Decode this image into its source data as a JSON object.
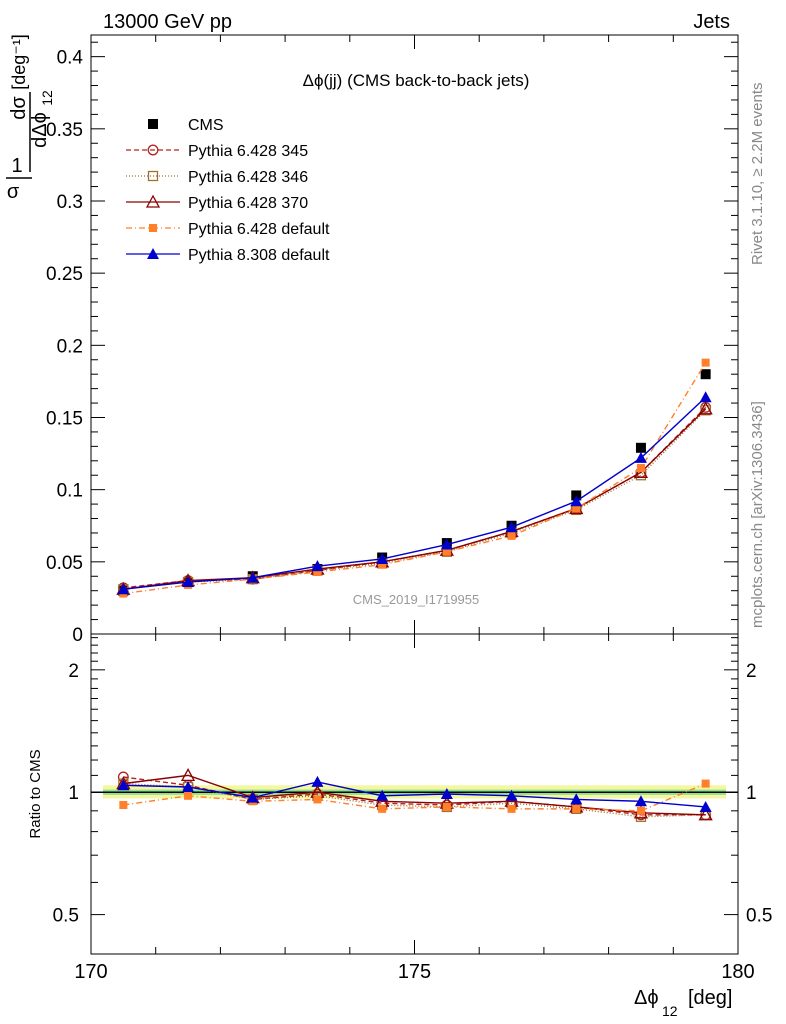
{
  "header": {
    "left": "13000 GeV pp",
    "right": "Jets"
  },
  "side_text": {
    "rivet": "Rivet 3.1.10, ≥ 2.2M events",
    "mcplots": "mcplots.cern.ch [arXiv:1306.3436]"
  },
  "watermark": "CMS_2019_I1719955",
  "chart_data": [
    {
      "type": "line",
      "title": "Δϕ(jj) (CMS back-to-back jets)",
      "ylabel_frac_num": "1",
      "ylabel_frac_num2": "dσ",
      "ylabel_frac_den": "σ",
      "ylabel_frac_den2": "dΔϕ",
      "ylabel_sub": "12",
      "ylabel_unit": "[deg⁻¹]",
      "xlim": [
        170,
        180
      ],
      "ylim": [
        0,
        0.415
      ],
      "yticks": [
        "0",
        "0.05",
        "0.1",
        "0.15",
        "0.2",
        "0.25",
        "0.3",
        "0.35",
        "0.4"
      ],
      "ytick_values": [
        0,
        0.05,
        0.1,
        0.15,
        0.2,
        0.25,
        0.3,
        0.35,
        0.4
      ],
      "x": [
        170.5,
        171.5,
        172.5,
        173.5,
        174.5,
        175.5,
        176.5,
        177.5,
        178.5,
        179.5
      ],
      "legend_position": "top-left",
      "series": [
        {
          "name": "CMS",
          "color": "#000000",
          "marker": "square-filled",
          "dash": "none",
          "values": [
            0.03,
            0.036,
            0.04,
            0.045,
            0.053,
            0.063,
            0.075,
            0.096,
            0.129,
            0.18
          ]
        },
        {
          "name": "Pythia 6.428 345",
          "color": "#b22222",
          "marker": "circle-open",
          "dash": "5,3",
          "values": [
            0.032,
            0.037,
            0.038,
            0.044,
            0.05,
            0.058,
            0.071,
            0.087,
            0.112,
            0.157
          ]
        },
        {
          "name": "Pythia 6.428 346",
          "color": "#a07030",
          "marker": "square-open",
          "dash": "1,2",
          "values": [
            0.031,
            0.036,
            0.038,
            0.044,
            0.049,
            0.057,
            0.07,
            0.086,
            0.11,
            0.155
          ]
        },
        {
          "name": "Pythia 6.428 370",
          "color": "#8b0000",
          "marker": "triangle-open",
          "dash": "none",
          "values": [
            0.031,
            0.037,
            0.039,
            0.045,
            0.05,
            0.058,
            0.071,
            0.087,
            0.112,
            0.156
          ]
        },
        {
          "name": "Pythia 6.428 default",
          "color": "#ff7f2a",
          "marker": "square-filled-small",
          "dash": "6,3,1,3",
          "values": [
            0.028,
            0.034,
            0.038,
            0.043,
            0.048,
            0.057,
            0.068,
            0.087,
            0.115,
            0.188
          ]
        },
        {
          "name": "Pythia 8.308 default",
          "color": "#0000cc",
          "marker": "triangle-filled",
          "dash": "none",
          "values": [
            0.031,
            0.036,
            0.039,
            0.047,
            0.052,
            0.062,
            0.074,
            0.092,
            0.122,
            0.164
          ]
        }
      ]
    },
    {
      "type": "line",
      "ylabel": "Ratio to CMS",
      "xlabel": "Δϕ",
      "xlabel_sub": "12",
      "xlabel_unit": "[deg]",
      "xlim": [
        170,
        180
      ],
      "ylim_log": [
        0.4,
        2.45
      ],
      "xticks": [
        "170",
        "175",
        "180"
      ],
      "xtick_values": [
        170,
        175,
        180
      ],
      "yticks": [
        "0.5",
        "1",
        "2"
      ],
      "ytick_values": [
        0.5,
        1,
        2
      ],
      "band_inner": [
        0.985,
        1.015
      ],
      "band_outer": [
        0.965,
        1.04
      ],
      "band_colors": {
        "outer": "#f4f7a0",
        "inner": "#90e090"
      },
      "x": [
        170.5,
        171.5,
        172.5,
        173.5,
        174.5,
        175.5,
        176.5,
        177.5,
        178.5,
        179.5
      ],
      "series": [
        {
          "name": "Pythia 6.428 345",
          "color": "#b22222",
          "marker": "circle-open",
          "dash": "5,3",
          "values": [
            1.09,
            1.04,
            0.96,
            0.99,
            0.94,
            0.93,
            0.95,
            0.92,
            0.88,
            0.88
          ]
        },
        {
          "name": "Pythia 6.428 346",
          "color": "#a07030",
          "marker": "square-open",
          "dash": "1,2",
          "values": [
            1.05,
            1.03,
            0.96,
            0.98,
            0.93,
            0.92,
            0.94,
            0.91,
            0.87,
            0.88
          ]
        },
        {
          "name": "Pythia 6.428 370",
          "color": "#8b0000",
          "marker": "triangle-open",
          "dash": "none",
          "values": [
            1.05,
            1.1,
            0.97,
            1.0,
            0.95,
            0.94,
            0.95,
            0.92,
            0.89,
            0.88
          ]
        },
        {
          "name": "Pythia 6.428 default",
          "color": "#ff7f2a",
          "marker": "square-filled-small",
          "dash": "6,3,1,3",
          "values": [
            0.93,
            0.98,
            0.95,
            0.96,
            0.91,
            0.92,
            0.91,
            0.91,
            0.9,
            1.05
          ]
        },
        {
          "name": "Pythia 8.308 default",
          "color": "#0000cc",
          "marker": "triangle-filled",
          "dash": "none",
          "values": [
            1.04,
            1.03,
            0.97,
            1.06,
            0.98,
            0.99,
            0.98,
            0.96,
            0.95,
            0.92
          ]
        }
      ]
    }
  ]
}
